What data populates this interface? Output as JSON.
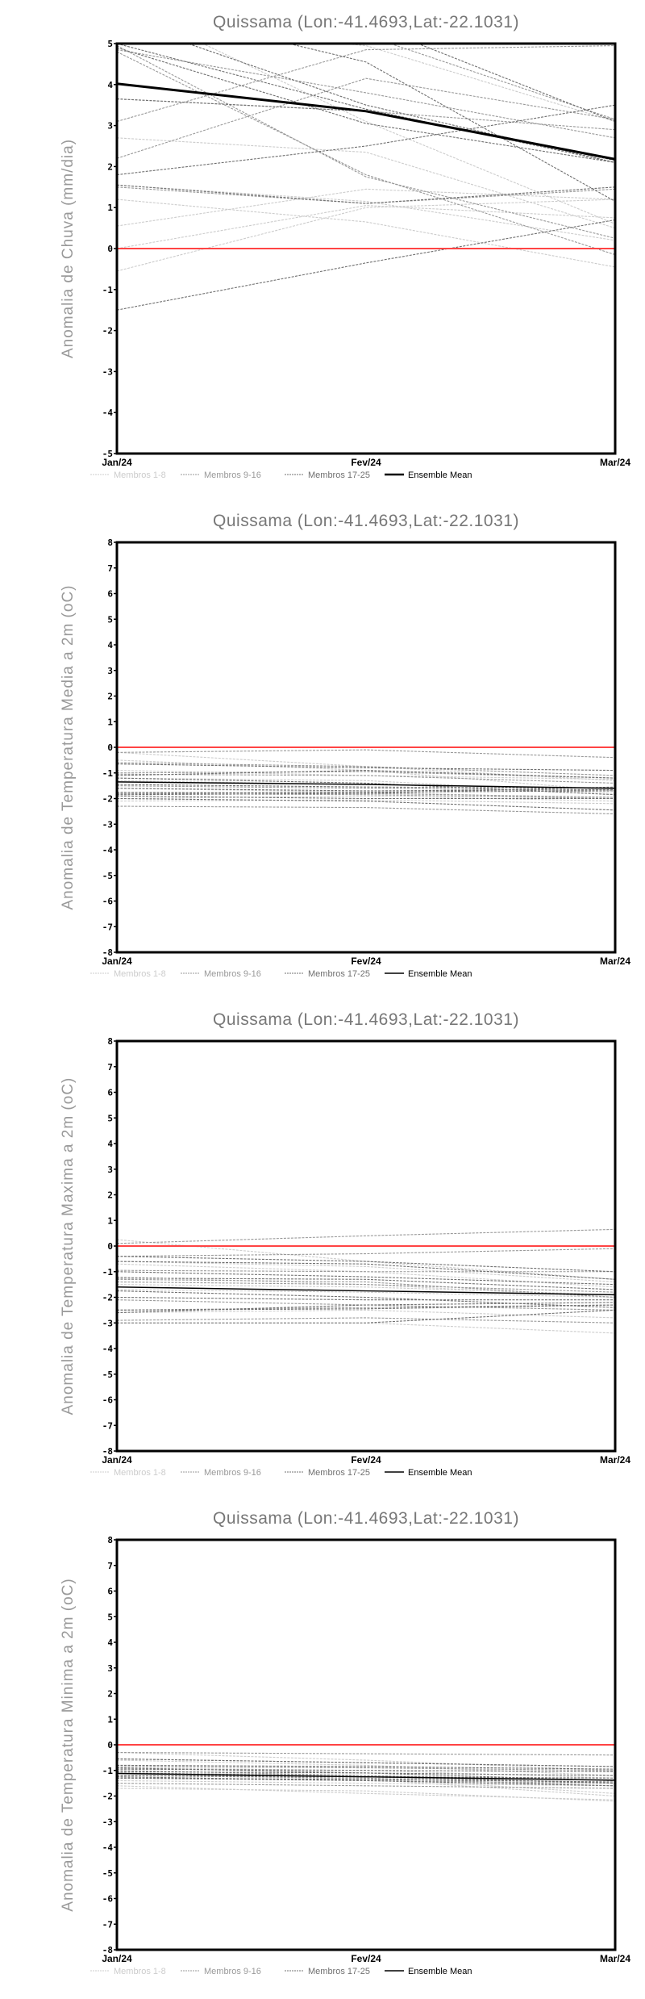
{
  "legend": {
    "items": [
      {
        "label": "Membros 1-8",
        "color": "#cccccc"
      },
      {
        "label": "Membros 9-16",
        "color": "#999999"
      },
      {
        "label": "Membros 17-25",
        "color": "#707070"
      },
      {
        "label": "Ensemble Mean",
        "color": "#000000"
      }
    ]
  },
  "chart_data": [
    {
      "type": "line",
      "title": "Quissama (Lon:-41.4693,Lat:-22.1031)",
      "ylabel": "Anomalia de Chuva (mm/dia)",
      "xlabel": "",
      "categories": [
        "Jan/24",
        "Fev/24",
        "Mar/24"
      ],
      "ylim": [
        -5,
        5
      ],
      "yticks": [
        -5,
        -4,
        -3,
        -2,
        -1,
        0,
        1,
        2,
        3,
        4,
        5
      ],
      "reference_line": {
        "value": 0,
        "color": "#ff4444"
      },
      "mean_thick": true,
      "ensemble_mean": [
        4.02,
        3.35,
        2.18
      ],
      "members_1_8": [
        [
          2.7,
          2.35,
          0.5
        ],
        [
          1.2,
          0.65,
          -0.45
        ],
        [
          0.55,
          1.45,
          1.2
        ],
        [
          -0.55,
          1.0,
          1.2
        ],
        [
          0.0,
          1.05,
          0.75
        ],
        [
          6.0,
          3.1,
          0.6
        ],
        [
          5.5,
          4.95,
          3.1
        ],
        [
          1.55,
          1.15,
          0.2
        ]
      ],
      "members_9_16": [
        [
          4.85,
          3.8,
          2.7
        ],
        [
          3.1,
          4.85,
          4.95
        ],
        [
          2.2,
          4.15,
          3.15
        ],
        [
          4.95,
          1.75,
          0.25
        ],
        [
          4.8,
          1.8,
          -0.15
        ],
        [
          1.5,
          1.1,
          1.45
        ],
        [
          3.65,
          3.35,
          2.9
        ],
        [
          5.6,
          5.2,
          3.15
        ]
      ],
      "members_17_25": [
        [
          1.8,
          2.5,
          3.5
        ],
        [
          -1.5,
          -0.35,
          0.7
        ],
        [
          1.55,
          1.1,
          1.5
        ],
        [
          5.0,
          3.4,
          2.1
        ],
        [
          6.0,
          4.55,
          1.15
        ],
        [
          5.6,
          3.5,
          2.1
        ],
        [
          7.0,
          5.5,
          3.1
        ],
        [
          4.9,
          3.05,
          2.1
        ],
        [
          3.65,
          3.35,
          2.15
        ]
      ]
    },
    {
      "type": "line",
      "title": "Quissama (Lon:-41.4693,Lat:-22.1031)",
      "ylabel": "Anomalia de Temperatura Media a 2m (oC)",
      "xlabel": "",
      "categories": [
        "Jan/24",
        "Fev/24",
        "Mar/24"
      ],
      "ylim": [
        -8,
        8
      ],
      "yticks": [
        -8,
        -7,
        -6,
        -5,
        -4,
        -3,
        -2,
        -1,
        0,
        1,
        2,
        3,
        4,
        5,
        6,
        7,
        8
      ],
      "reference_line": {
        "value": 0,
        "color": "#ff4444"
      },
      "mean_thick": false,
      "ensemble_mean": [
        -1.35,
        -1.45,
        -1.6
      ],
      "members_1_8": [
        [
          -0.2,
          -0.75,
          -1.3
        ],
        [
          -0.9,
          -1.1,
          -1.25
        ],
        [
          -1.2,
          -1.3,
          -1.8
        ],
        [
          -1.6,
          -1.75,
          -2.0
        ],
        [
          -2.1,
          -2.05,
          -2.2
        ],
        [
          -0.5,
          -0.9,
          -1.7
        ],
        [
          -1.3,
          -1.45,
          -1.6
        ],
        [
          -2.0,
          -1.9,
          -2.1
        ]
      ],
      "members_9_16": [
        [
          -0.6,
          -0.75,
          -1.1
        ],
        [
          -1.05,
          -1.1,
          -1.4
        ],
        [
          -1.5,
          -1.6,
          -1.7
        ],
        [
          -1.8,
          -1.85,
          -2.0
        ],
        [
          -2.3,
          -2.35,
          -2.6
        ],
        [
          -0.2,
          -0.1,
          -0.4
        ],
        [
          -1.0,
          -0.95,
          -1.2
        ],
        [
          -1.75,
          -1.8,
          -1.95
        ]
      ],
      "members_17_25": [
        [
          -0.65,
          -0.8,
          -0.9
        ],
        [
          -1.1,
          -0.9,
          -1.2
        ],
        [
          -1.45,
          -1.55,
          -1.6
        ],
        [
          -1.85,
          -1.8,
          -1.55
        ],
        [
          -2.0,
          -2.1,
          -2.45
        ],
        [
          -1.2,
          -1.4,
          -1.85
        ],
        [
          -1.8,
          -1.75,
          -1.7
        ],
        [
          -1.9,
          -2.0,
          -2.0
        ],
        [
          -1.6,
          -1.7,
          -1.65
        ]
      ]
    },
    {
      "type": "line",
      "title": "Quissama (Lon:-41.4693,Lat:-22.1031)",
      "ylabel": "Anomalia de Temperatura Maxima a 2m (oC)",
      "xlabel": "",
      "categories": [
        "Jan/24",
        "Fev/24",
        "Mar/24"
      ],
      "ylim": [
        -8,
        8
      ],
      "yticks": [
        -8,
        -7,
        -6,
        -5,
        -4,
        -3,
        -2,
        -1,
        0,
        1,
        2,
        3,
        4,
        5,
        6,
        7,
        8
      ],
      "reference_line": {
        "value": 0,
        "color": "#ff4444"
      },
      "mean_thick": false,
      "ensemble_mean": [
        -1.6,
        -1.75,
        -1.9
      ],
      "members_1_8": [
        [
          0.25,
          -0.6,
          -1.3
        ],
        [
          -0.6,
          -0.8,
          -1.4
        ],
        [
          -1.2,
          -1.5,
          -2.0
        ],
        [
          -2.6,
          -2.5,
          -2.8
        ],
        [
          -1.7,
          -1.8,
          -2.0
        ],
        [
          -3.0,
          -3.0,
          -3.4
        ],
        [
          -1.5,
          -1.6,
          -1.9
        ],
        [
          -0.7,
          -1.0,
          -1.6
        ]
      ],
      "members_9_16": [
        [
          0.1,
          0.4,
          0.65
        ],
        [
          -0.4,
          -0.3,
          -0.1
        ],
        [
          -0.95,
          -1.0,
          -1.0
        ],
        [
          -1.4,
          -1.5,
          -1.8
        ],
        [
          -2.5,
          -2.4,
          -2.3
        ],
        [
          -1.3,
          -1.4,
          -2.0
        ],
        [
          -2.1,
          -2.3,
          -2.5
        ],
        [
          -2.9,
          -2.8,
          -3.0
        ]
      ],
      "members_17_25": [
        [
          -0.4,
          -0.6,
          -1.0
        ],
        [
          -0.6,
          -0.7,
          -1.3
        ],
        [
          -1.0,
          -1.2,
          -1.5
        ],
        [
          -1.25,
          -1.3,
          -1.7
        ],
        [
          -2.5,
          -2.45,
          -2.3
        ],
        [
          -2.6,
          -2.3,
          -2.2
        ],
        [
          -3.0,
          -3.0,
          -2.5
        ],
        [
          -1.75,
          -2.0,
          -2.4
        ],
        [
          -2.0,
          -2.1,
          -2.1
        ]
      ]
    },
    {
      "type": "line",
      "title": "Quissama (Lon:-41.4693,Lat:-22.1031)",
      "ylabel": "Anomalia de Temperatura Minima a 2m (oC)",
      "xlabel": "",
      "categories": [
        "Jan/24",
        "Fev/24",
        "Mar/24"
      ],
      "ylim": [
        -8,
        8
      ],
      "yticks": [
        -8,
        -7,
        -6,
        -5,
        -4,
        -3,
        -2,
        -1,
        0,
        1,
        2,
        3,
        4,
        5,
        6,
        7,
        8
      ],
      "reference_line": {
        "value": 0,
        "color": "#ff4444"
      },
      "mean_thick": false,
      "ensemble_mean": [
        -1.12,
        -1.25,
        -1.38
      ],
      "members_1_8": [
        [
          -0.3,
          -0.6,
          -1.0
        ],
        [
          -0.6,
          -0.8,
          -1.2
        ],
        [
          -1.2,
          -1.3,
          -1.9
        ],
        [
          -1.7,
          -1.8,
          -2.2
        ],
        [
          -1.4,
          -1.5,
          -1.6
        ],
        [
          -0.9,
          -1.0,
          -1.3
        ],
        [
          -1.1,
          -1.35,
          -2.0
        ],
        [
          -1.6,
          -1.9,
          -2.15
        ]
      ],
      "members_9_16": [
        [
          -0.3,
          -0.35,
          -0.4
        ],
        [
          -0.55,
          -0.7,
          -0.85
        ],
        [
          -0.85,
          -0.9,
          -1.0
        ],
        [
          -1.1,
          -1.2,
          -1.4
        ],
        [
          -1.3,
          -1.4,
          -1.5
        ],
        [
          -1.5,
          -1.6,
          -1.7
        ],
        [
          -1.0,
          -1.2,
          -1.5
        ],
        [
          -1.2,
          -1.3,
          -1.6
        ]
      ],
      "members_17_25": [
        [
          -0.55,
          -0.7,
          -0.85
        ],
        [
          -0.8,
          -0.85,
          -0.95
        ],
        [
          -0.95,
          -1.0,
          -1.05
        ],
        [
          -1.05,
          -1.1,
          -1.2
        ],
        [
          -1.2,
          -1.25,
          -1.3
        ],
        [
          -1.3,
          -1.35,
          -1.45
        ],
        [
          -1.1,
          -1.25,
          -1.5
        ],
        [
          -1.25,
          -1.4,
          -1.6
        ],
        [
          -0.9,
          -1.1,
          -1.4
        ]
      ]
    }
  ]
}
